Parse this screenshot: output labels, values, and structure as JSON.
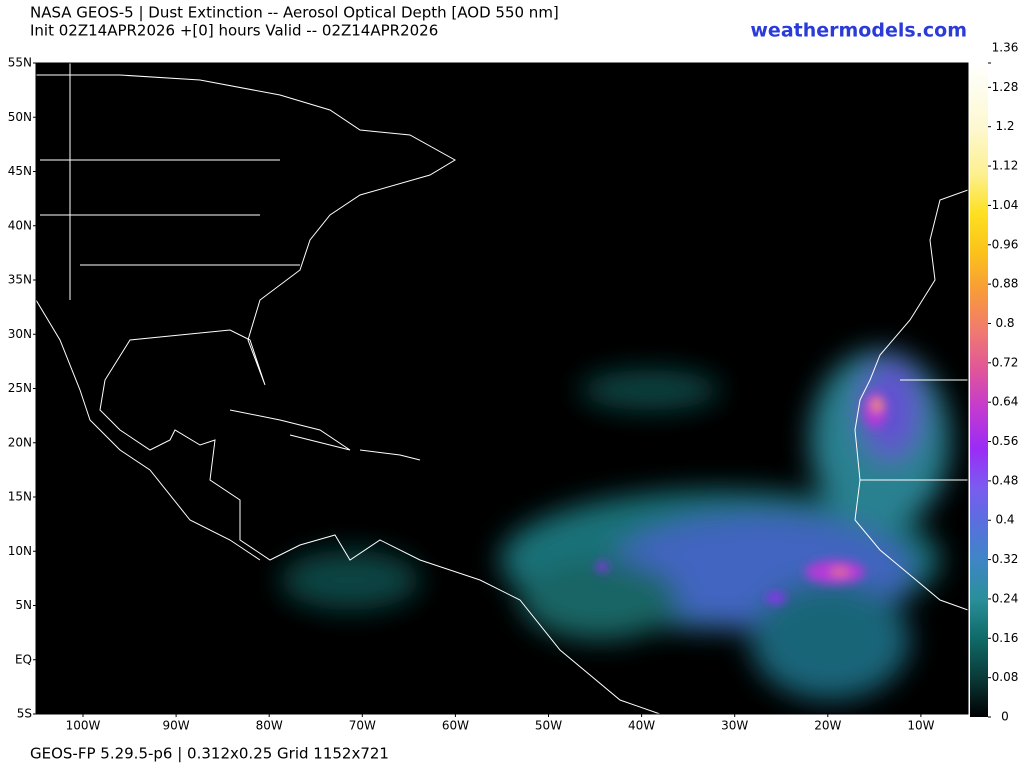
{
  "header": {
    "title": "NASA GEOS-5 | Dust Extinction -- Aerosol Optical Depth [AOD 550 nm]",
    "subtitle": "Init 02Z14APR2026 +[0] hours Valid -- 02Z14APR2026",
    "site": "weathermodels.com"
  },
  "map": {
    "lat_labels": [
      "55N",
      "50N",
      "45N",
      "40N",
      "35N",
      "30N",
      "25N",
      "20N",
      "15N",
      "10N",
      "5N",
      "EQ",
      "5S"
    ],
    "lon_labels": [
      "100W",
      "90W",
      "80W",
      "70W",
      "60W",
      "50W",
      "40W",
      "30W",
      "20W",
      "10W"
    ]
  },
  "colorbar": {
    "ticks": [
      0,
      0.08,
      0.16,
      0.24,
      0.32,
      0.4,
      0.48,
      0.56,
      0.64,
      0.72,
      0.8,
      0.88,
      0.96,
      1.04,
      1.12,
      1.2,
      1.28,
      1.36
    ]
  },
  "footer": "GEOS-FP 5.29.5-p6 | 0.312x0.25 Grid 1152x721"
}
